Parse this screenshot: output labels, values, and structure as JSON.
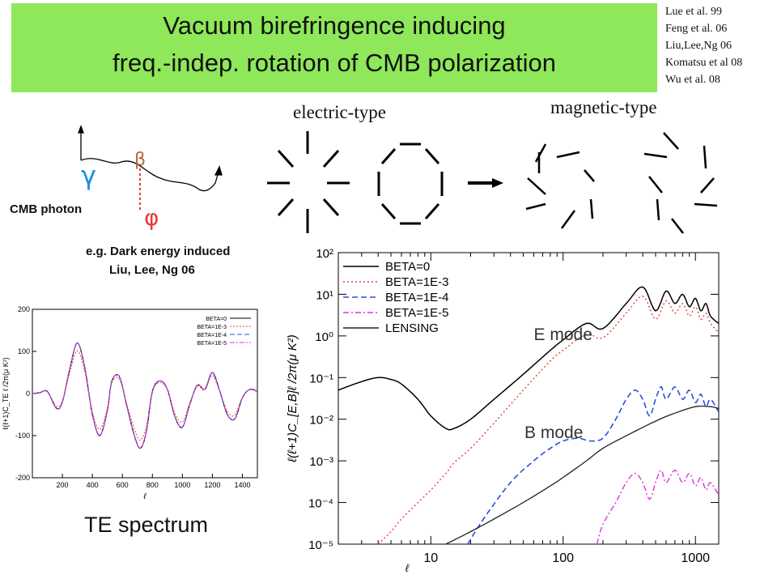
{
  "title": {
    "line1": "Vacuum birefringence inducing",
    "line2": "freq.-indep. rotation of CMB polarization",
    "background": "#8ee85a"
  },
  "references": [
    "Lue et al. 99",
    "Feng et al. 06",
    "Liu,Lee,Ng 06",
    "Komatsu et al 08",
    "Wu et al. 08"
  ],
  "patterns": {
    "electric_label": "electric-type",
    "magnetic_label": "magnetic-type"
  },
  "photon_diagram": {
    "gamma": "γ",
    "beta": "β",
    "phi": "φ",
    "photon_label": "CMB photon",
    "colors": {
      "gamma": "#1a8fe0",
      "beta": "#b06a3a",
      "phi": "#e63a3a"
    }
  },
  "notes": {
    "line1": "e.g. Dark energy induced",
    "line2": "Liu, Lee, Ng 06"
  },
  "te_caption": "TE spectrum",
  "chart_data": [
    {
      "type": "line",
      "title": "",
      "xlabel": "ℓ",
      "ylabel": "ℓ(ℓ+1)C_TE ℓ /2π(μ K²)",
      "xlim": [
        0,
        1500
      ],
      "ylim": [
        -200,
        200
      ],
      "x_ticks": [
        200,
        400,
        600,
        800,
        1000,
        1200,
        1400
      ],
      "y_ticks": [
        -200,
        -100,
        0,
        100,
        200
      ],
      "legend_position": "top-right",
      "series": [
        {
          "name": "BETA=0",
          "color": "#000000",
          "dash": "none",
          "x": [
            0,
            50,
            100,
            160,
            200,
            250,
            300,
            350,
            400,
            450,
            500,
            530,
            580,
            630,
            680,
            720,
            760,
            800,
            850,
            900,
            950,
            1000,
            1050,
            1100,
            1150,
            1200,
            1250,
            1300,
            1350,
            1400,
            1450,
            1500
          ],
          "y": [
            0,
            2,
            5,
            -35,
            -20,
            60,
            120,
            60,
            -50,
            -100,
            -40,
            30,
            40,
            -30,
            -100,
            -130,
            -90,
            5,
            30,
            10,
            -55,
            -80,
            -25,
            20,
            10,
            50,
            5,
            -50,
            -60,
            -10,
            10,
            5
          ]
        },
        {
          "name": "BETA=1E-3",
          "color": "#e0443a",
          "dash": "2,2",
          "x": [
            0,
            50,
            100,
            160,
            200,
            250,
            300,
            350,
            400,
            450,
            500,
            530,
            580,
            630,
            680,
            720,
            760,
            800,
            850,
            900,
            950,
            1000,
            1050,
            1100,
            1150,
            1200,
            1250,
            1300,
            1350,
            1400,
            1450,
            1500
          ],
          "y": [
            0,
            2,
            4,
            -30,
            -17,
            51,
            102,
            51,
            -43,
            -85,
            -34,
            26,
            34,
            -26,
            -85,
            -111,
            -77,
            4,
            26,
            9,
            -47,
            -68,
            -21,
            17,
            9,
            43,
            4,
            -43,
            -51,
            -9,
            9,
            4
          ]
        },
        {
          "name": "BETA=1E-4",
          "color": "#2a4fe0",
          "dash": "6,3",
          "x": [
            0,
            50,
            100,
            160,
            200,
            250,
            300,
            350,
            400,
            450,
            500,
            530,
            580,
            630,
            680,
            720,
            760,
            800,
            850,
            900,
            950,
            1000,
            1050,
            1100,
            1150,
            1200,
            1250,
            1300,
            1350,
            1400,
            1450,
            1500
          ],
          "y": [
            0,
            2,
            5,
            -35,
            -20,
            60,
            120,
            60,
            -50,
            -100,
            -40,
            30,
            40,
            -30,
            -100,
            -130,
            -90,
            5,
            30,
            10,
            -55,
            -80,
            -25,
            20,
            10,
            50,
            5,
            -50,
            -60,
            -10,
            10,
            5
          ]
        },
        {
          "name": "BETA=1E-5",
          "color": "#e030e0",
          "dash": "6,2,2,2",
          "x": [
            0,
            50,
            100,
            160,
            200,
            250,
            300,
            350,
            400,
            450,
            500,
            530,
            580,
            630,
            680,
            720,
            760,
            800,
            850,
            900,
            950,
            1000,
            1050,
            1100,
            1150,
            1200,
            1250,
            1300,
            1350,
            1400,
            1450,
            1500
          ],
          "y": [
            0,
            2,
            5,
            -35,
            -20,
            60,
            120,
            60,
            -50,
            -100,
            -40,
            30,
            40,
            -30,
            -100,
            -130,
            -90,
            5,
            30,
            10,
            -55,
            -80,
            -25,
            20,
            10,
            50,
            5,
            -50,
            -60,
            -10,
            10,
            5
          ]
        }
      ]
    },
    {
      "type": "line",
      "title": "",
      "xlabel": "ℓ",
      "ylabel": "ℓ(ℓ+1)C_[E,B]ℓ /2π(μ K²)",
      "x_scale": "log",
      "y_scale": "log",
      "xlim": [
        2,
        1500
      ],
      "ylim": [
        1e-05,
        100
      ],
      "x_ticks": [
        10,
        100,
        1000
      ],
      "y_ticks": [
        1e-05,
        0.0001,
        0.001,
        0.01,
        0.1,
        1,
        10,
        100
      ],
      "y_tick_labels": [
        "10⁻⁵",
        "10⁻⁴",
        "10⁻³",
        "10⁻²",
        "10⁻¹",
        "10⁰",
        "10¹",
        "10²"
      ],
      "legend_position": "top-left",
      "annotations": [
        "E mode",
        "B mode"
      ],
      "series": [
        {
          "name": "BETA=0",
          "color": "#000000",
          "dash": "none",
          "x": [
            2,
            3,
            4,
            5,
            6,
            8,
            10,
            13,
            15,
            20,
            30,
            50,
            80,
            100,
            150,
            200,
            300,
            400,
            500,
            600,
            700,
            800,
            900,
            1000,
            1100,
            1200,
            1300,
            1500
          ],
          "y": [
            0.05,
            0.08,
            0.1,
            0.09,
            0.07,
            0.03,
            0.012,
            0.006,
            0.006,
            0.01,
            0.03,
            0.12,
            0.45,
            0.8,
            2,
            1.5,
            6,
            15,
            4,
            12,
            6,
            10,
            5,
            8,
            4,
            6,
            3,
            2
          ]
        },
        {
          "name": "BETA=1E-3",
          "color": "#e0443a",
          "dash": "2,3",
          "x": [
            4,
            5,
            6,
            8,
            10,
            13,
            15,
            20,
            30,
            50,
            80,
            100,
            150,
            200,
            300,
            400,
            500,
            600,
            700,
            800,
            900,
            1000,
            1100,
            1200,
            1300,
            1500
          ],
          "y": [
            1e-05,
            2e-05,
            4e-05,
            0.0001,
            0.0002,
            0.0005,
            0.0009,
            0.002,
            0.008,
            0.05,
            0.25,
            0.45,
            1.1,
            0.9,
            3.5,
            9,
            2.5,
            7,
            3.5,
            6,
            3,
            5,
            2.5,
            3.5,
            2,
            1.2
          ]
        },
        {
          "name": "BETA=1E-4",
          "color": "#2a4fe0",
          "dash": "7,4",
          "x": [
            19,
            25,
            40,
            60,
            80,
            100,
            130,
            160,
            200,
            250,
            300,
            350,
            400,
            450,
            500,
            550,
            600,
            700,
            800,
            900,
            1000,
            1100,
            1200,
            1300,
            1500
          ],
          "y": [
            1e-05,
            4e-05,
            0.0003,
            0.001,
            0.002,
            0.003,
            0.0035,
            0.003,
            0.0035,
            0.01,
            0.03,
            0.05,
            0.03,
            0.012,
            0.03,
            0.06,
            0.03,
            0.06,
            0.03,
            0.05,
            0.025,
            0.04,
            0.02,
            0.03,
            0.015
          ]
        },
        {
          "name": "BETA=1E-5",
          "color": "#e030e0",
          "dash": "7,3,2,3",
          "x": [
            180,
            200,
            250,
            300,
            350,
            400,
            450,
            500,
            550,
            600,
            700,
            800,
            900,
            1000,
            1100,
            1200,
            1300,
            1500
          ],
          "y": [
            1e-05,
            3e-05,
            0.0001,
            0.0003,
            0.0005,
            0.0003,
            0.00012,
            0.0003,
            0.0006,
            0.0003,
            0.0006,
            0.0003,
            0.0005,
            0.00025,
            0.0004,
            0.0002,
            0.0003,
            0.00015
          ]
        },
        {
          "name": "LENSING",
          "color": "#222222",
          "dash": "none",
          "x": [
            13,
            20,
            30,
            50,
            80,
            100,
            150,
            200,
            300,
            500,
            700,
            1000,
            1300,
            1500
          ],
          "y": [
            1e-05,
            2e-05,
            4e-05,
            0.0001,
            0.00025,
            0.0004,
            0.001,
            0.002,
            0.004,
            0.009,
            0.014,
            0.02,
            0.02,
            0.018
          ]
        }
      ]
    }
  ]
}
